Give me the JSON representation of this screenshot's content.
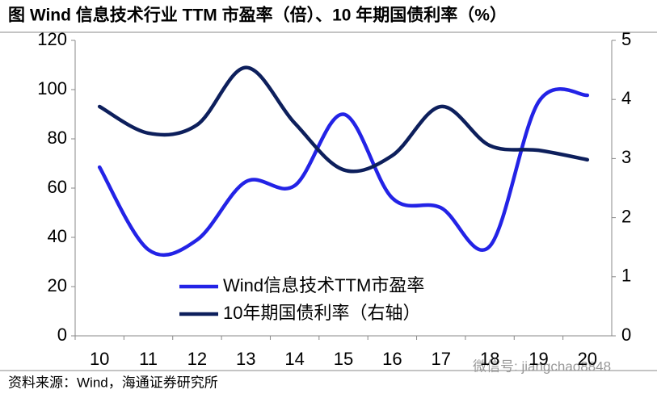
{
  "chart_data": {
    "type": "line",
    "title": "图    Wind 信息技术行业 TTM 市盈率（倍）、10 年期国债利率（%）",
    "source": "资料来源：Wind，海通证券研究所",
    "watermark": "微信号: jiangchao8848",
    "categories": [
      "10",
      "11",
      "12",
      "13",
      "14",
      "15",
      "16",
      "17",
      "18",
      "19",
      "20"
    ],
    "series": [
      {
        "name": "Wind信息技术TTM市盈率",
        "color": "#2323e6",
        "values": [
          68.5,
          35,
          39,
          62.6,
          61,
          90,
          56,
          52,
          36.4,
          95,
          97.7
        ]
      },
      {
        "name": "10年期国债利率（右轴）",
        "color": "#0d1f5c",
        "axis": "y2",
        "values": [
          3.88,
          3.43,
          3.57,
          4.54,
          3.6,
          2.81,
          3.05,
          3.88,
          3.22,
          3.14,
          2.98
        ]
      }
    ],
    "ylim": [
      0,
      120
    ],
    "yticks": [
      0,
      20,
      40,
      60,
      80,
      100,
      120
    ],
    "y2lim": [
      0,
      5
    ],
    "y2ticks": [
      0,
      1,
      2,
      3,
      4,
      5
    ]
  }
}
